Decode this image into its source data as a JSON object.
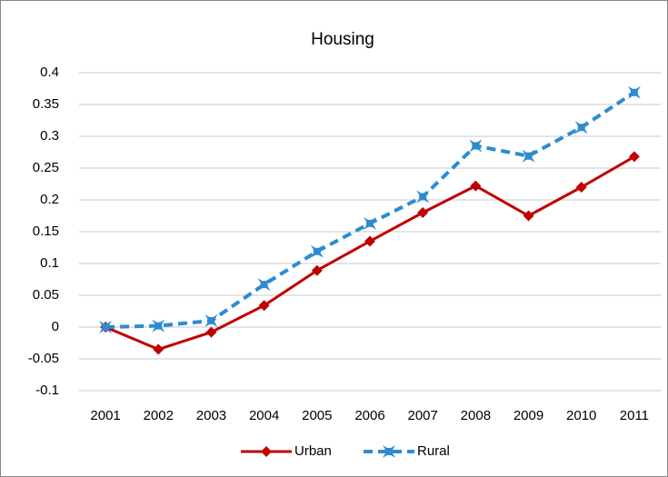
{
  "chart_data": {
    "type": "line",
    "title": "Housing",
    "categories": [
      "2001",
      "2002",
      "2003",
      "2004",
      "2005",
      "2006",
      "2007",
      "2008",
      "2009",
      "2010",
      "2011"
    ],
    "series": [
      {
        "name": "Urban",
        "color": "#c00000",
        "values": [
          0,
          -0.035,
          -0.008,
          0.034,
          0.089,
          0.135,
          0.18,
          0.222,
          0.175,
          0.22,
          0.268
        ]
      },
      {
        "name": "Rural",
        "color": "#2e8bd0",
        "values": [
          0,
          0.002,
          0.01,
          0.067,
          0.119,
          0.163,
          0.205,
          0.285,
          0.269,
          0.314,
          0.369
        ]
      }
    ],
    "ylim": [
      -0.1,
      0.4
    ],
    "yticks": [
      -0.1,
      -0.05,
      0,
      0.05,
      0.1,
      0.15,
      0.2,
      0.25,
      0.3,
      0.35,
      0.4
    ],
    "grid": true,
    "legend": "bottom"
  }
}
